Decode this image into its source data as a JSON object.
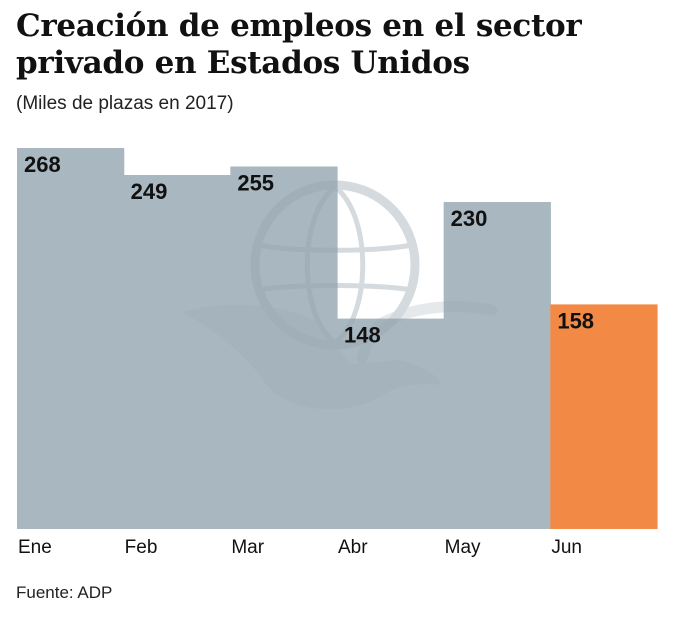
{
  "chart_data": {
    "type": "bar",
    "title": "Creación de empleos en el sector privado en Estados Unidos",
    "subtitle": "(Miles de plazas en 2017)",
    "categories": [
      "Ene",
      "Feb",
      "Mar",
      "Abr",
      "May",
      "Jun"
    ],
    "values": [
      268,
      249,
      255,
      148,
      230,
      158
    ],
    "value_labels": [
      "268",
      "249",
      "255",
      "148",
      "230",
      "158"
    ],
    "highlight_index": 5,
    "xlabel": "",
    "ylabel": "",
    "ylim": [
      0,
      268
    ],
    "grid": false,
    "legend": "none",
    "source": "Fuente: ADP"
  },
  "colors": {
    "bar": "#a9b7c0",
    "highlight": "#f28a45",
    "watermark": "#95a4ae"
  },
  "watermark_icon": "eagle-globe-logo"
}
